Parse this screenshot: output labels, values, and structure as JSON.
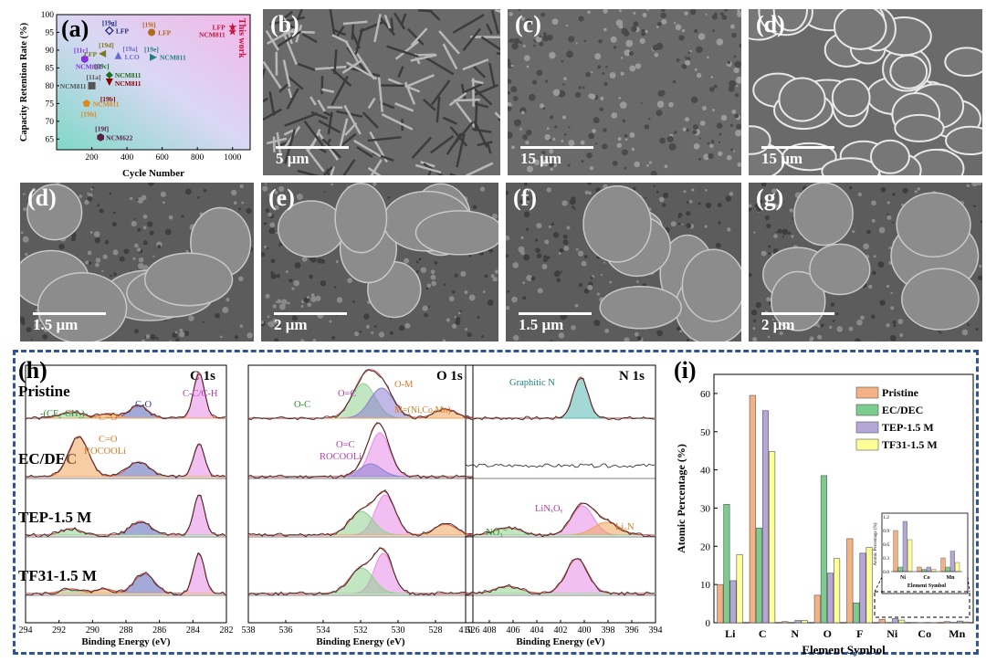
{
  "panel_a": {
    "label": "(a)",
    "ylabel": "Capacity Retention Rate (%)",
    "xlabel": "Cycle Number",
    "this_work": "This work",
    "chart_data": {
      "type": "scatter",
      "xlim": [
        0,
        1100
      ],
      "ylim": [
        62,
        100
      ],
      "x_ticks": [
        200,
        400,
        600,
        800,
        1000
      ],
      "y_ticks": [
        65,
        70,
        75,
        80,
        85,
        90,
        95,
        100
      ],
      "points": [
        {
          "ref": "[19g]",
          "cat": "LFP",
          "x": 300,
          "y": 95.5,
          "color": "#1f2a80",
          "shape": "diamond-open"
        },
        {
          "ref": "[19i]",
          "cat": "LFP",
          "x": 540,
          "y": 95,
          "color": "#b06a1c",
          "shape": "circle"
        },
        {
          "ref": "",
          "cat": "LFP",
          "x": 1000,
          "y": 96.5,
          "color": "#c0143c",
          "shape": "star"
        },
        {
          "ref": "",
          "cat": "NCM811",
          "x": 1000,
          "y": 95.2,
          "color": "#c0143c",
          "shape": "star"
        },
        {
          "ref": "[11c]",
          "cat": "NCM811",
          "x": 160,
          "y": 87.5,
          "color": "#8a2be2",
          "shape": "hexagon"
        },
        {
          "ref": "[19d]",
          "cat": "LFP",
          "x": 260,
          "y": 89,
          "color": "#7a7a20",
          "shape": "triangle-left"
        },
        {
          "ref": "[19a]",
          "cat": "LCO",
          "x": 350,
          "y": 88.5,
          "color": "#6a6ad8",
          "shape": "triangle-up"
        },
        {
          "ref": "[19e]",
          "cat": "NCM811",
          "x": 550,
          "y": 88,
          "color": "#1f7f7f",
          "shape": "triangle-right"
        },
        {
          "ref": "[19c]",
          "cat": "NCM811",
          "x": 300,
          "y": 83,
          "color": "#1f6b1f",
          "shape": "diamond"
        },
        {
          "ref": "",
          "cat": "NCM811",
          "x": 300,
          "y": 81,
          "color": "#8b0000",
          "shape": "triangle-down"
        },
        {
          "ref": "[11a]",
          "cat": "NCM811",
          "x": 200,
          "y": 80,
          "color": "#555555",
          "shape": "square"
        },
        {
          "ref": "[19h]",
          "cat": "NCM811",
          "x": 170,
          "y": 75,
          "color": "#e0861a",
          "shape": "pentagon"
        },
        {
          "ref": "[19f]",
          "cat": "NCM622",
          "x": 250,
          "y": 65.5,
          "color": "#5a2040",
          "shape": "hexagon"
        }
      ]
    },
    "texts": {
      "r19g": "[19g]",
      "lfp1": "LFP",
      "r19i": "[19i]",
      "lfp2": "LFP",
      "lfp_tw": "LFP",
      "ncm_tw": "NCM811",
      "r11c": "[11c]",
      "ncm811_a": "NCM811",
      "r19d": "[19d]",
      "lfp3": "LFP",
      "r19a": "[19a]",
      "lco": "LCO",
      "r19e": "[19e]",
      "ncm811_b": "NCM811",
      "r19c": "[19c]",
      "ncm811_c": "NCM811",
      "ncm811_d": "NCM811",
      "r11a": "[11a]",
      "ncm811_e": "NCM811",
      "r19b": "[19b]",
      "r19h": "[19h]",
      "ncm811_f": "NCM811",
      "r19f": "[19f]",
      "ncm622": "NCM622"
    }
  },
  "sem_panels": [
    {
      "label": "(b)",
      "scale": "5 μm"
    },
    {
      "label": "(c)",
      "scale": "15 μm"
    },
    {
      "label": "(d)",
      "scale": "15 μm"
    },
    {
      "label": "(d)",
      "scale": "1.5 μm"
    },
    {
      "label": "(e)",
      "scale": "2 μm"
    },
    {
      "label": "(f)",
      "scale": "1.5 μm"
    },
    {
      "label": "(g)",
      "scale": "2 μm"
    }
  ],
  "panel_h": {
    "label": "(h)",
    "rows": [
      "Pristine",
      "EC/DEC",
      "TEP-1.5 M",
      "TF31-1.5 M"
    ],
    "c1s": {
      "title": "C 1s",
      "xlabel": "Binding Energy (eV)",
      "ticks": [
        "294",
        "292",
        "290",
        "288",
        "286",
        "284",
        "282"
      ],
      "ann_cc": "C-C/C-H",
      "ann_cf": "-(CF₂-CH₂)-",
      "ann_co": "C=O",
      "ann_c_o": "C-O",
      "ann_co2": "C=O",
      "ann_rocooli": "ROCOOLi"
    },
    "o1s": {
      "title": "O 1s",
      "xlabel": "Binding Energy (eV)",
      "ticks": [
        "538",
        "536",
        "534",
        "532",
        "530",
        "528",
        "526"
      ],
      "ann_oc_top": "O=C",
      "ann_om": "O-M",
      "ann_oc": "O-C",
      "ann_mlist": "M=(Ni,Co,Mn)",
      "ann_oc2": "O=C",
      "ann_rocooli": "ROCOOLi"
    },
    "n1s": {
      "title": "N 1s",
      "xlabel": "Binding Energy (eV)",
      "ticks": [
        "410",
        "408",
        "406",
        "404",
        "402",
        "400",
        "398",
        "396",
        "394"
      ],
      "ann_graphitic": "Graphitic N",
      "ann_no3": "NO₃⁻",
      "ann_linxoy": "LiNₓOᵧ",
      "ann_li3n": "Li₃N"
    }
  },
  "panel_i": {
    "label": "(i)",
    "ylabel": "Atomic Percentage (%)",
    "xlabel": "Element Symbol",
    "inset_ylabel": "Atomic Percentage (%)",
    "inset_xlabel": "Element Symbol",
    "chart_data": {
      "type": "bar",
      "categories": [
        "Li",
        "C",
        "N",
        "O",
        "F",
        "Ni",
        "Co",
        "Mn"
      ],
      "ylim": [
        0,
        65
      ],
      "y_ticks": [
        0,
        10,
        20,
        30,
        40,
        50,
        60
      ],
      "series": [
        {
          "name": "Pristine",
          "color": "#f4b183",
          "values": [
            10,
            59.5,
            0.3,
            7.2,
            22,
            0.9,
            0.1,
            0.3
          ]
        },
        {
          "name": "EC/DEC",
          "color": "#7ccb8f",
          "values": [
            31,
            24.8,
            0,
            38.5,
            5.2,
            0.1,
            0.05,
            0.1
          ]
        },
        {
          "name": "TEP-1.5 M",
          "color": "#b4a7d6",
          "values": [
            11,
            55.5,
            0.6,
            13,
            18.2,
            1.1,
            0.1,
            0.45
          ]
        },
        {
          "name": "TF31-1.5 M",
          "color": "#ffff99",
          "values": [
            17.8,
            44.8,
            0.6,
            16.8,
            19.7,
            0.7,
            0.05,
            0.2
          ]
        }
      ],
      "inset": {
        "categories": [
          "Ni",
          "Co",
          "Mn"
        ],
        "ylim": [
          0,
          1.2
        ],
        "y_ticks": [
          "0.0",
          "0.3",
          "0.6",
          "0.9",
          "1.2"
        ]
      }
    }
  }
}
